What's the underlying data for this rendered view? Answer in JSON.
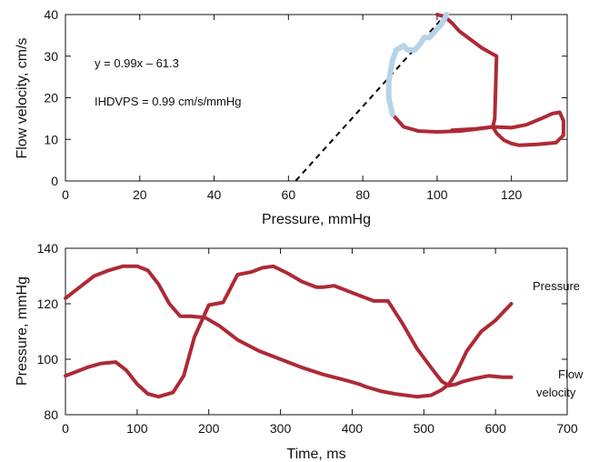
{
  "chart_data": [
    {
      "type": "line",
      "xlabel": "Pressure, mmHg",
      "ylabel": "Flow velocity, cm/s",
      "xlim": [
        0,
        135
      ],
      "ylim": [
        0,
        40
      ],
      "xticks": [
        0,
        20,
        40,
        60,
        80,
        100,
        120
      ],
      "yticks": [
        0,
        10,
        20,
        30,
        40
      ],
      "grid": false,
      "colors": {
        "loop": "#ad2a35",
        "fit_segment": "#b7d3e8",
        "fit_line": "#000000"
      },
      "annotations": [
        "y = 0.99x – 61.3",
        "IHDVPS = 0.99 cm/s/mmHg"
      ],
      "series": [
        {
          "role": "loop",
          "x": [
            88,
            91,
            95,
            100,
            106,
            111,
            115,
            115.5,
            116,
            114,
            112,
            109,
            106,
            104,
            102,
            100
          ],
          "y": [
            16,
            13,
            12,
            11.8,
            12,
            12.5,
            13,
            15,
            30,
            31,
            32,
            34,
            36,
            38,
            39.5,
            40
          ]
        },
        {
          "role": "loop-lower",
          "x": [
            104,
            110,
            115,
            120,
            124,
            128,
            131,
            133,
            134,
            134,
            132,
            127,
            122,
            120,
            118,
            116,
            115
          ],
          "y": [
            12.2,
            12.5,
            13,
            12.8,
            13.5,
            15,
            16.2,
            16.5,
            14.5,
            11,
            9.2,
            8.8,
            8.6,
            9,
            9.8,
            11.5,
            13
          ]
        },
        {
          "role": "fit_segment",
          "x": [
            88,
            87,
            87,
            88,
            89,
            91,
            92,
            94,
            95.5,
            96.5,
            98,
            99.5,
            101,
            102,
            102.5
          ],
          "y": [
            16,
            20,
            24,
            29,
            31.5,
            32.5,
            31.5,
            31.5,
            33,
            34.5,
            34.5,
            36,
            37.5,
            39,
            40
          ]
        },
        {
          "role": "fit_line",
          "x": [
            62,
            102.3
          ],
          "y": [
            0.08,
            40
          ]
        }
      ]
    },
    {
      "type": "line",
      "xlabel": "Time, ms",
      "ylabel": "Pressure, mmHg",
      "xlim": [
        0,
        700
      ],
      "ylim": [
        80,
        140
      ],
      "xticks": [
        0,
        100,
        200,
        300,
        400,
        500,
        600,
        700
      ],
      "yticks": [
        80,
        100,
        120,
        140
      ],
      "grid": false,
      "series": [
        {
          "name": "Pressure",
          "x": [
            0,
            15,
            30,
            50,
            70,
            85,
            100,
            115,
            130,
            150,
            165,
            180,
            200,
            220,
            240,
            260,
            275,
            290,
            310,
            330,
            350,
            360,
            375,
            390,
            410,
            430,
            450,
            470,
            490,
            510,
            525,
            535,
            545,
            555,
            570,
            590,
            610,
            622
          ],
          "y": [
            94,
            95.5,
            97,
            98.5,
            99,
            96,
            91,
            87.5,
            86.5,
            88,
            94,
            108,
            119.5,
            120.5,
            130.5,
            131.5,
            133,
            133.5,
            131,
            128,
            126,
            126,
            126.5,
            125,
            123,
            121,
            121,
            113,
            104,
            97,
            92,
            90.5,
            91,
            92,
            93,
            94,
            93.5,
            93.5
          ]
        },
        {
          "name": "Flow velocity",
          "x": [
            0,
            20,
            40,
            60,
            80,
            100,
            115,
            130,
            145,
            160,
            175,
            195,
            215,
            240,
            270,
            300,
            330,
            360,
            390,
            410,
            420,
            440,
            460,
            490,
            510,
            525,
            535,
            545,
            560,
            580,
            600,
            622
          ],
          "y": [
            122,
            126,
            130,
            132,
            133.5,
            133.5,
            132,
            127,
            120,
            115.5,
            115.5,
            115,
            112,
            107,
            103,
            100,
            97,
            94.5,
            92.5,
            91,
            90,
            88.5,
            87.5,
            86.5,
            87,
            89,
            91,
            95,
            103,
            110,
            114,
            120
          ]
        }
      ],
      "annotations": [
        "Pressure",
        "Flow velocity"
      ],
      "colors": {
        "line": "#ad2a35"
      }
    }
  ]
}
